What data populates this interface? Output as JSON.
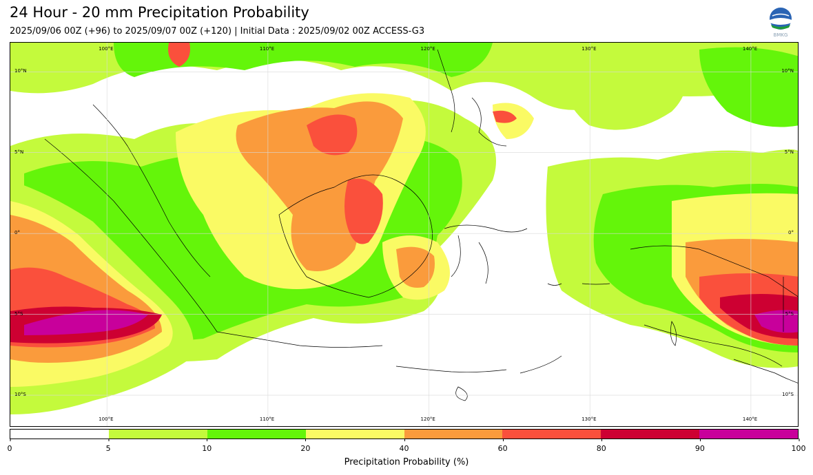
{
  "header": {
    "title": "24 Hour - 20 mm Precipitation Probability",
    "subtitle": "2025/09/06 00Z (+96) to 2025/09/07 00Z (+120) | Initial Data : 2025/09/02 00Z ACCESS-G3"
  },
  "logo": {
    "text": "BMKG",
    "icon": "bmkg-logo"
  },
  "map": {
    "lon_labels_top": [
      "100°E",
      "110°E",
      "120°E",
      "130°E",
      "140°E"
    ],
    "lon_labels_bottom": [
      "100°E",
      "110°E",
      "120°E",
      "130°E",
      "140°E"
    ],
    "lat_labels_left": [
      "10°N",
      "5°N",
      "0°",
      "5°S",
      "10°S"
    ],
    "lat_labels_right": [
      "10°N",
      "5°N",
      "0°",
      "5°S",
      "10°S"
    ],
    "lon_values": [
      100,
      110,
      120,
      130,
      140
    ],
    "lat_values": [
      10,
      5,
      0,
      -5,
      -10
    ],
    "extent": {
      "lon_min": 94,
      "lon_max": 143,
      "lat_min": -12,
      "lat_max": 11.8
    }
  },
  "colorbar": {
    "label": "Precipitation Probability (%)",
    "ticks": [
      "0",
      "5",
      "10",
      "20",
      "40",
      "60",
      "80",
      "90",
      "100"
    ],
    "bins": [
      0,
      5,
      10,
      20,
      40,
      60,
      80,
      90,
      100
    ],
    "colors": [
      "#ffffff",
      "#c4fa3c",
      "#64f50a",
      "#fafa64",
      "#fa9b3c",
      "#fa503c",
      "#cd0032",
      "#c8009b"
    ]
  }
}
